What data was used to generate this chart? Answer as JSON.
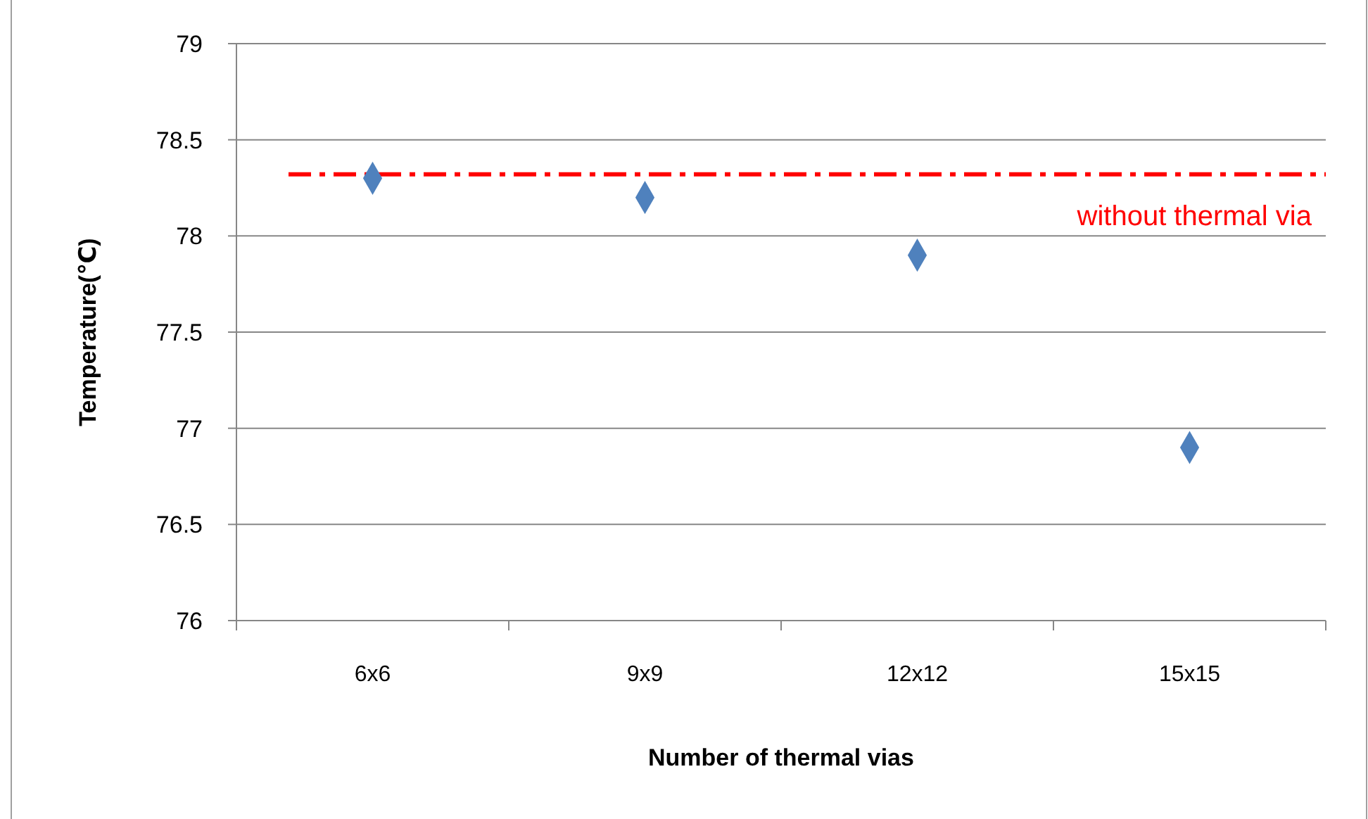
{
  "chart_data": {
    "type": "scatter",
    "xlabel": "Number of thermal vias",
    "ylabel": "Temperature(℃)",
    "categories": [
      "6x6",
      "9x9",
      "12x12",
      "15x15"
    ],
    "series": [
      {
        "color": "#4f81bd",
        "values": [
          78.3,
          78.2,
          77.9,
          76.9
        ]
      }
    ],
    "ylim": [
      76,
      79
    ],
    "yticks": [
      76,
      76.5,
      77,
      77.5,
      78,
      78.5,
      79
    ],
    "grid": "y",
    "marker": "diamond",
    "ref_lines": [
      {
        "axis": "y",
        "value": 78.32,
        "label": "without thermal via",
        "color": "#ff0000",
        "line_style": "dashdot"
      }
    ]
  }
}
